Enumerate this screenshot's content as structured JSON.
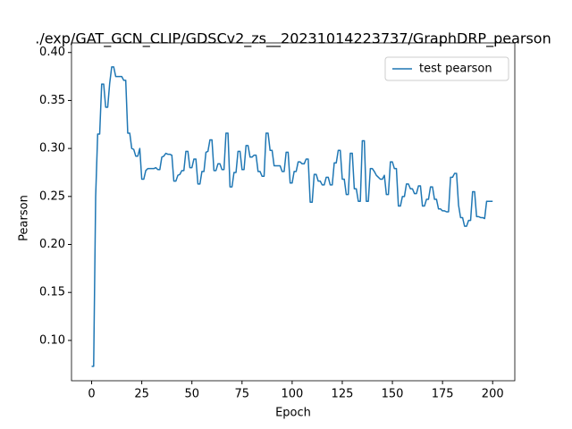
{
  "chart_data": {
    "type": "line",
    "title": "./exp/GAT_GCN_CLIP/GDSCv2_zs__20231014223737/GraphDRP_pearson",
    "x_label": "Epoch",
    "y_label": "Pearson",
    "x": [
      0,
      1,
      2,
      3,
      4,
      5,
      6,
      7,
      8,
      9,
      10,
      11,
      12,
      13,
      14,
      15,
      16,
      17,
      18,
      19,
      20,
      21,
      22,
      23,
      24,
      25,
      26,
      27,
      28,
      29,
      30,
      31,
      32,
      33,
      34,
      35,
      36,
      37,
      38,
      39,
      40,
      41,
      42,
      43,
      44,
      45,
      46,
      47,
      48,
      49,
      50,
      51,
      52,
      53,
      54,
      55,
      56,
      57,
      58,
      59,
      60,
      61,
      62,
      63,
      64,
      65,
      66,
      67,
      68,
      69,
      70,
      71,
      72,
      73,
      74,
      75,
      76,
      77,
      78,
      79,
      80,
      81,
      82,
      83,
      84,
      85,
      86,
      87,
      88,
      89,
      90,
      91,
      92,
      93,
      94,
      95,
      96,
      97,
      98,
      99,
      100,
      101,
      102,
      103,
      104,
      105,
      106,
      107,
      108,
      109,
      110,
      111,
      112,
      113,
      114,
      115,
      116,
      117,
      118,
      119,
      120,
      121,
      122,
      123,
      124,
      125,
      126,
      127,
      128,
      129,
      130,
      131,
      132,
      133,
      134,
      135,
      136,
      137,
      138,
      139,
      140,
      141,
      142,
      143,
      144,
      145,
      146,
      147,
      148,
      149,
      150,
      151,
      152,
      153,
      154,
      155,
      156,
      157,
      158,
      159,
      160,
      161,
      162,
      163,
      164,
      165,
      166,
      167,
      168,
      169,
      170,
      171,
      172,
      173,
      174,
      175,
      176,
      177,
      178,
      179,
      180,
      181,
      182,
      183,
      184,
      185,
      186,
      187,
      188,
      189,
      190,
      191,
      192,
      193,
      194,
      195,
      196,
      197,
      198,
      199,
      200
    ],
    "series": [
      {
        "name": "test pearson",
        "color": "#1f77b4",
        "values": [
          0.073,
          0.073,
          0.25,
          0.315,
          0.315,
          0.367,
          0.367,
          0.343,
          0.343,
          0.368,
          0.385,
          0.385,
          0.375,
          0.375,
          0.375,
          0.375,
          0.371,
          0.371,
          0.316,
          0.316,
          0.3,
          0.299,
          0.292,
          0.292,
          0.3,
          0.268,
          0.268,
          0.277,
          0.279,
          0.279,
          0.279,
          0.279,
          0.28,
          0.278,
          0.278,
          0.291,
          0.292,
          0.295,
          0.294,
          0.294,
          0.293,
          0.266,
          0.266,
          0.272,
          0.273,
          0.277,
          0.277,
          0.297,
          0.297,
          0.28,
          0.28,
          0.289,
          0.289,
          0.263,
          0.263,
          0.276,
          0.276,
          0.296,
          0.297,
          0.309,
          0.309,
          0.277,
          0.277,
          0.284,
          0.284,
          0.278,
          0.278,
          0.316,
          0.316,
          0.26,
          0.26,
          0.275,
          0.275,
          0.297,
          0.297,
          0.278,
          0.278,
          0.303,
          0.303,
          0.291,
          0.291,
          0.293,
          0.293,
          0.276,
          0.276,
          0.271,
          0.271,
          0.316,
          0.316,
          0.298,
          0.298,
          0.282,
          0.282,
          0.282,
          0.282,
          0.276,
          0.276,
          0.296,
          0.296,
          0.264,
          0.264,
          0.276,
          0.276,
          0.286,
          0.286,
          0.284,
          0.284,
          0.289,
          0.289,
          0.244,
          0.244,
          0.273,
          0.273,
          0.266,
          0.266,
          0.262,
          0.262,
          0.27,
          0.27,
          0.262,
          0.262,
          0.285,
          0.285,
          0.298,
          0.298,
          0.268,
          0.268,
          0.252,
          0.252,
          0.295,
          0.295,
          0.258,
          0.258,
          0.245,
          0.245,
          0.308,
          0.308,
          0.245,
          0.245,
          0.279,
          0.279,
          0.276,
          0.272,
          0.27,
          0.268,
          0.268,
          0.272,
          0.252,
          0.252,
          0.286,
          0.286,
          0.279,
          0.279,
          0.24,
          0.24,
          0.25,
          0.25,
          0.263,
          0.263,
          0.258,
          0.258,
          0.253,
          0.253,
          0.261,
          0.261,
          0.24,
          0.24,
          0.247,
          0.247,
          0.26,
          0.26,
          0.247,
          0.247,
          0.237,
          0.237,
          0.235,
          0.235,
          0.234,
          0.234,
          0.27,
          0.27,
          0.274,
          0.274,
          0.241,
          0.228,
          0.228,
          0.219,
          0.219,
          0.225,
          0.225,
          0.255,
          0.255,
          0.229,
          0.229,
          0.228,
          0.228,
          0.227,
          0.245,
          0.245,
          0.245,
          0.245
        ]
      }
    ],
    "xlim": [
      -10.05,
      211.05
    ],
    "xticks": [
      0,
      25,
      50,
      75,
      100,
      125,
      150,
      175,
      200
    ],
    "ylim": [
      0.058,
      0.41
    ],
    "yticks": [
      {
        "value": 0.1,
        "label": "0.10"
      },
      {
        "value": 0.15,
        "label": "0.15"
      },
      {
        "value": 0.2,
        "label": "0.20"
      },
      {
        "value": 0.25,
        "label": "0.25"
      },
      {
        "value": 0.3,
        "label": "0.30"
      },
      {
        "value": 0.35,
        "label": "0.35"
      },
      {
        "value": 0.4,
        "label": "0.40"
      }
    ],
    "legend": "upper right"
  }
}
